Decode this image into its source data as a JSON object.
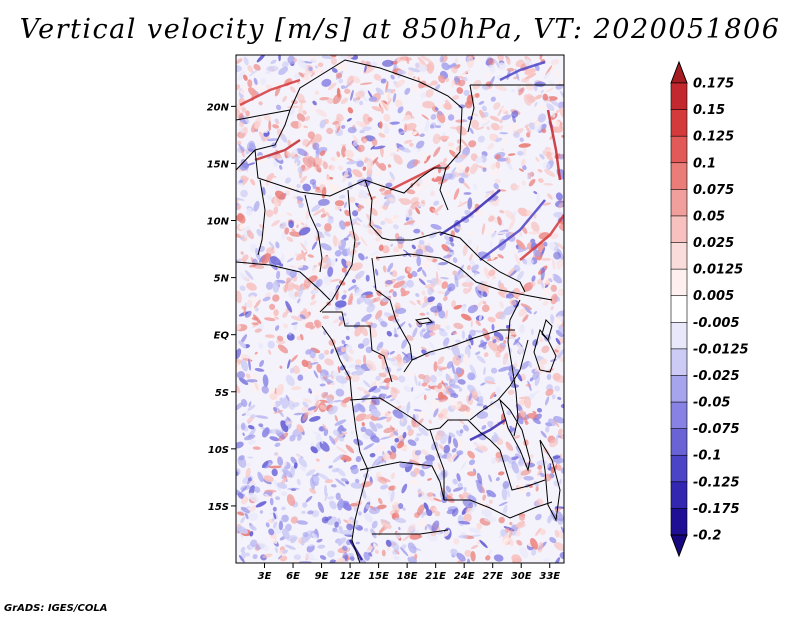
{
  "title": "Vertical velocity [m/s] at 850hPa, VT: 2020051806",
  "footer": "GrADS: IGES/COLA",
  "map": {
    "lat_labels": [
      "20N",
      "15N",
      "10N",
      "5N",
      "EQ",
      "5S",
      "10S",
      "15S"
    ],
    "lat_values": [
      20,
      15,
      10,
      5,
      0,
      -5,
      -10,
      -15
    ],
    "lon_labels": [
      "3E",
      "6E",
      "9E",
      "12E",
      "15E",
      "18E",
      "21E",
      "24E",
      "27E",
      "30E",
      "33E"
    ],
    "lon_values": [
      3,
      6,
      9,
      12,
      15,
      18,
      21,
      24,
      27,
      30,
      33
    ],
    "lon_range": [
      0,
      34.5
    ],
    "lat_range": [
      -20,
      24.5
    ]
  },
  "colorbar": {
    "labels": [
      "0.175",
      "0.15",
      "0.125",
      "0.1",
      "0.075",
      "0.05",
      "0.025",
      "0.0125",
      "0.005",
      "-0.005",
      "-0.0125",
      "-0.025",
      "-0.05",
      "-0.075",
      "-0.1",
      "-0.125",
      "-0.175",
      "-0.2"
    ],
    "colors": [
      "#a51d21",
      "#c2282d",
      "#d53a3b",
      "#e25a57",
      "#ea7d78",
      "#f19f9c",
      "#f7c1bf",
      "#fadcdb",
      "#fdf0ef",
      "#ffffff",
      "#e8e8fa",
      "#cbcbf5",
      "#a7a4ee",
      "#8882e4",
      "#6963d6",
      "#4c44c6",
      "#3326b0",
      "#1f0f95",
      "#17087f"
    ]
  }
}
